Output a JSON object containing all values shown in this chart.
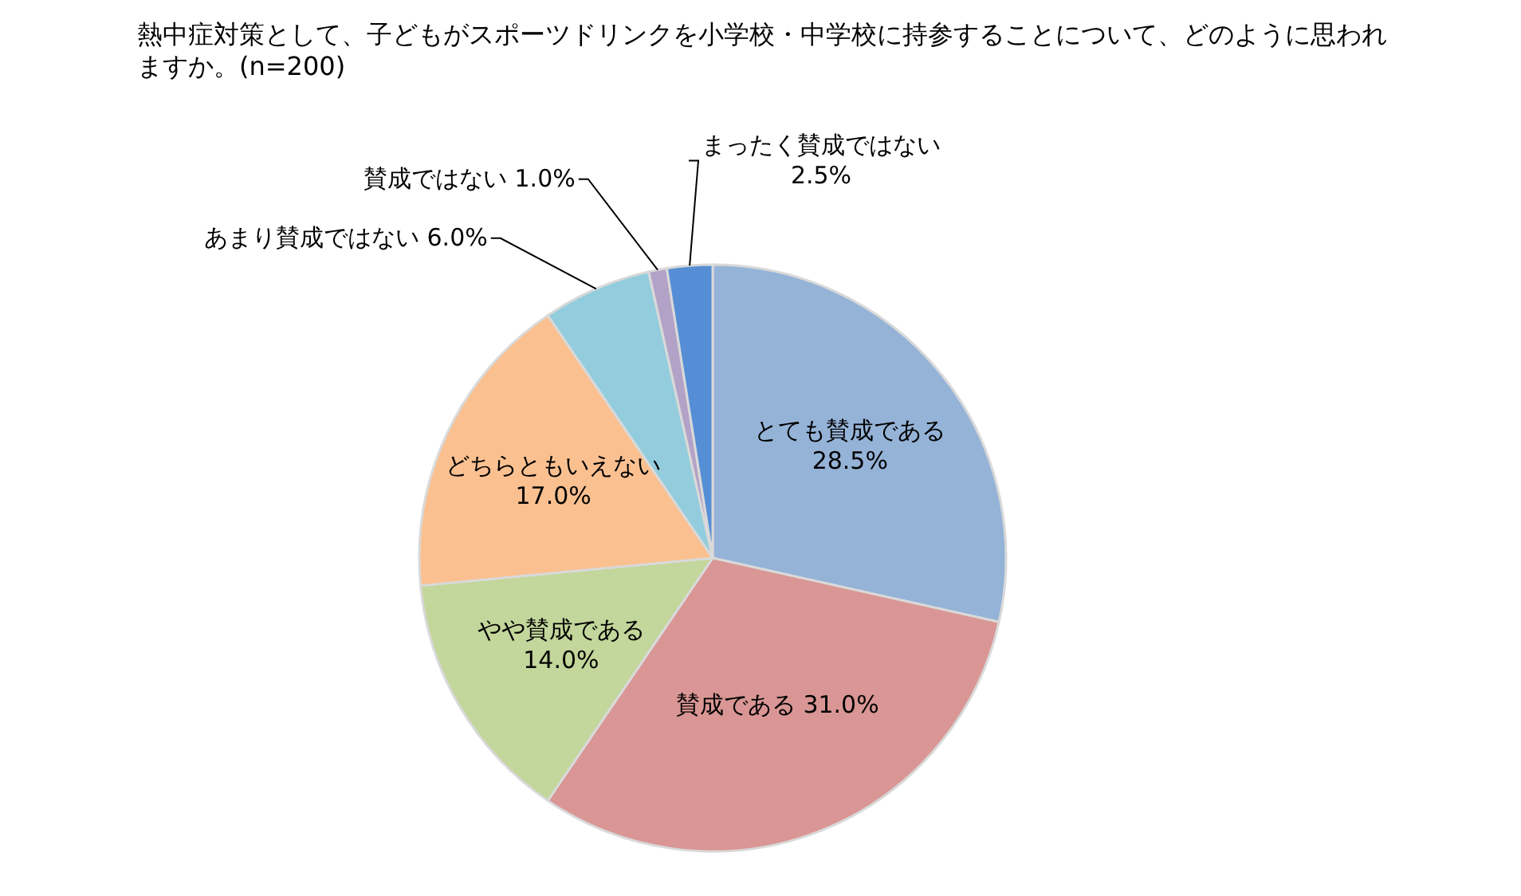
{
  "chart_data": {
    "type": "pie",
    "title": "熱中症対策として、子どもがスポーツドリンクを小学校・中学校に持参することについて、どのように思われますか。(n=200)",
    "categories": [
      "とても賛成である",
      "賛成である",
      "やや賛成である",
      "どちらともいえない",
      "あまり賛成ではない",
      "賛成ではない",
      "まったく賛成ではない"
    ],
    "values": [
      28.5,
      31.0,
      14.0,
      17.0,
      6.0,
      1.0,
      2.5
    ],
    "value_labels": [
      "28.5%",
      "31.0%",
      "14.0%",
      "17.0%",
      "6.0%",
      "1.0%",
      "2.5%"
    ],
    "colors": [
      "#95b3d7",
      "#d99694",
      "#c3d69b",
      "#fac090",
      "#93cddd",
      "#b3a2c7",
      "#558ed5"
    ]
  }
}
